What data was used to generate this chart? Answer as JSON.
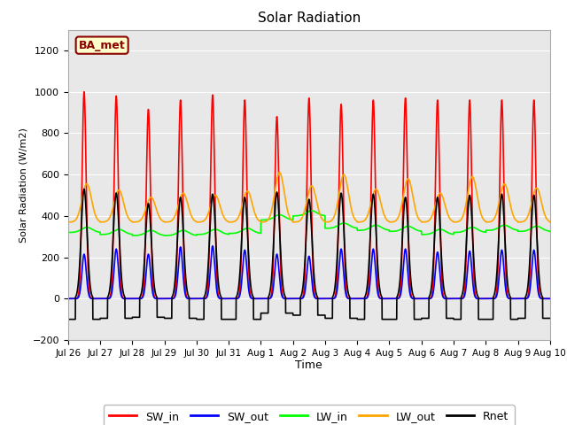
{
  "title": "Solar Radiation",
  "xlabel": "Time",
  "ylabel": "Solar Radiation (W/m2)",
  "ylim": [
    -200,
    1300
  ],
  "yticks": [
    -200,
    0,
    200,
    400,
    600,
    800,
    1000,
    1200
  ],
  "colors": {
    "SW_in": "red",
    "SW_out": "blue",
    "LW_in": "lime",
    "LW_out": "orange",
    "Rnet": "black"
  },
  "line_widths": {
    "SW_in": 1.2,
    "SW_out": 1.2,
    "LW_in": 1.2,
    "LW_out": 1.2,
    "Rnet": 1.2
  },
  "annotation_text": "BA_met",
  "figure_bg": "#ffffff",
  "plot_bg": "#e8e8e8",
  "x_tick_labels": [
    "Jul 26",
    "Jul 27",
    "Jul 28",
    "Jul 29",
    "Jul 30",
    "Jul 31",
    "Aug 1",
    "Aug 2",
    "Aug 3",
    "Aug 4",
    "Aug 5",
    "Aug 6",
    "Aug 7",
    "Aug 8",
    "Aug 9",
    "Aug 10"
  ],
  "n_days": 15,
  "sw_in_peaks": [
    1000,
    980,
    915,
    960,
    985,
    960,
    880,
    970,
    940,
    960,
    970,
    960,
    960,
    960,
    960
  ],
  "sw_out_peaks": [
    215,
    240,
    215,
    250,
    255,
    235,
    215,
    205,
    240,
    240,
    240,
    225,
    230,
    235,
    235
  ],
  "lw_in_base": [
    320,
    310,
    305,
    305,
    310,
    315,
    380,
    400,
    340,
    330,
    325,
    310,
    320,
    330,
    325
  ],
  "lw_out_base": 370,
  "lw_out_peaks": [
    555,
    525,
    490,
    510,
    500,
    520,
    610,
    545,
    600,
    530,
    580,
    510,
    590,
    555,
    535
  ],
  "rnet_peaks": [
    530,
    510,
    460,
    490,
    505,
    490,
    515,
    480,
    510,
    505,
    490,
    490,
    500,
    505,
    500
  ],
  "rnet_night_min": [
    -100,
    -95,
    -90,
    -95,
    -100,
    -100,
    -70,
    -80,
    -95,
    -100,
    -100,
    -95,
    -100,
    -100,
    -95
  ]
}
